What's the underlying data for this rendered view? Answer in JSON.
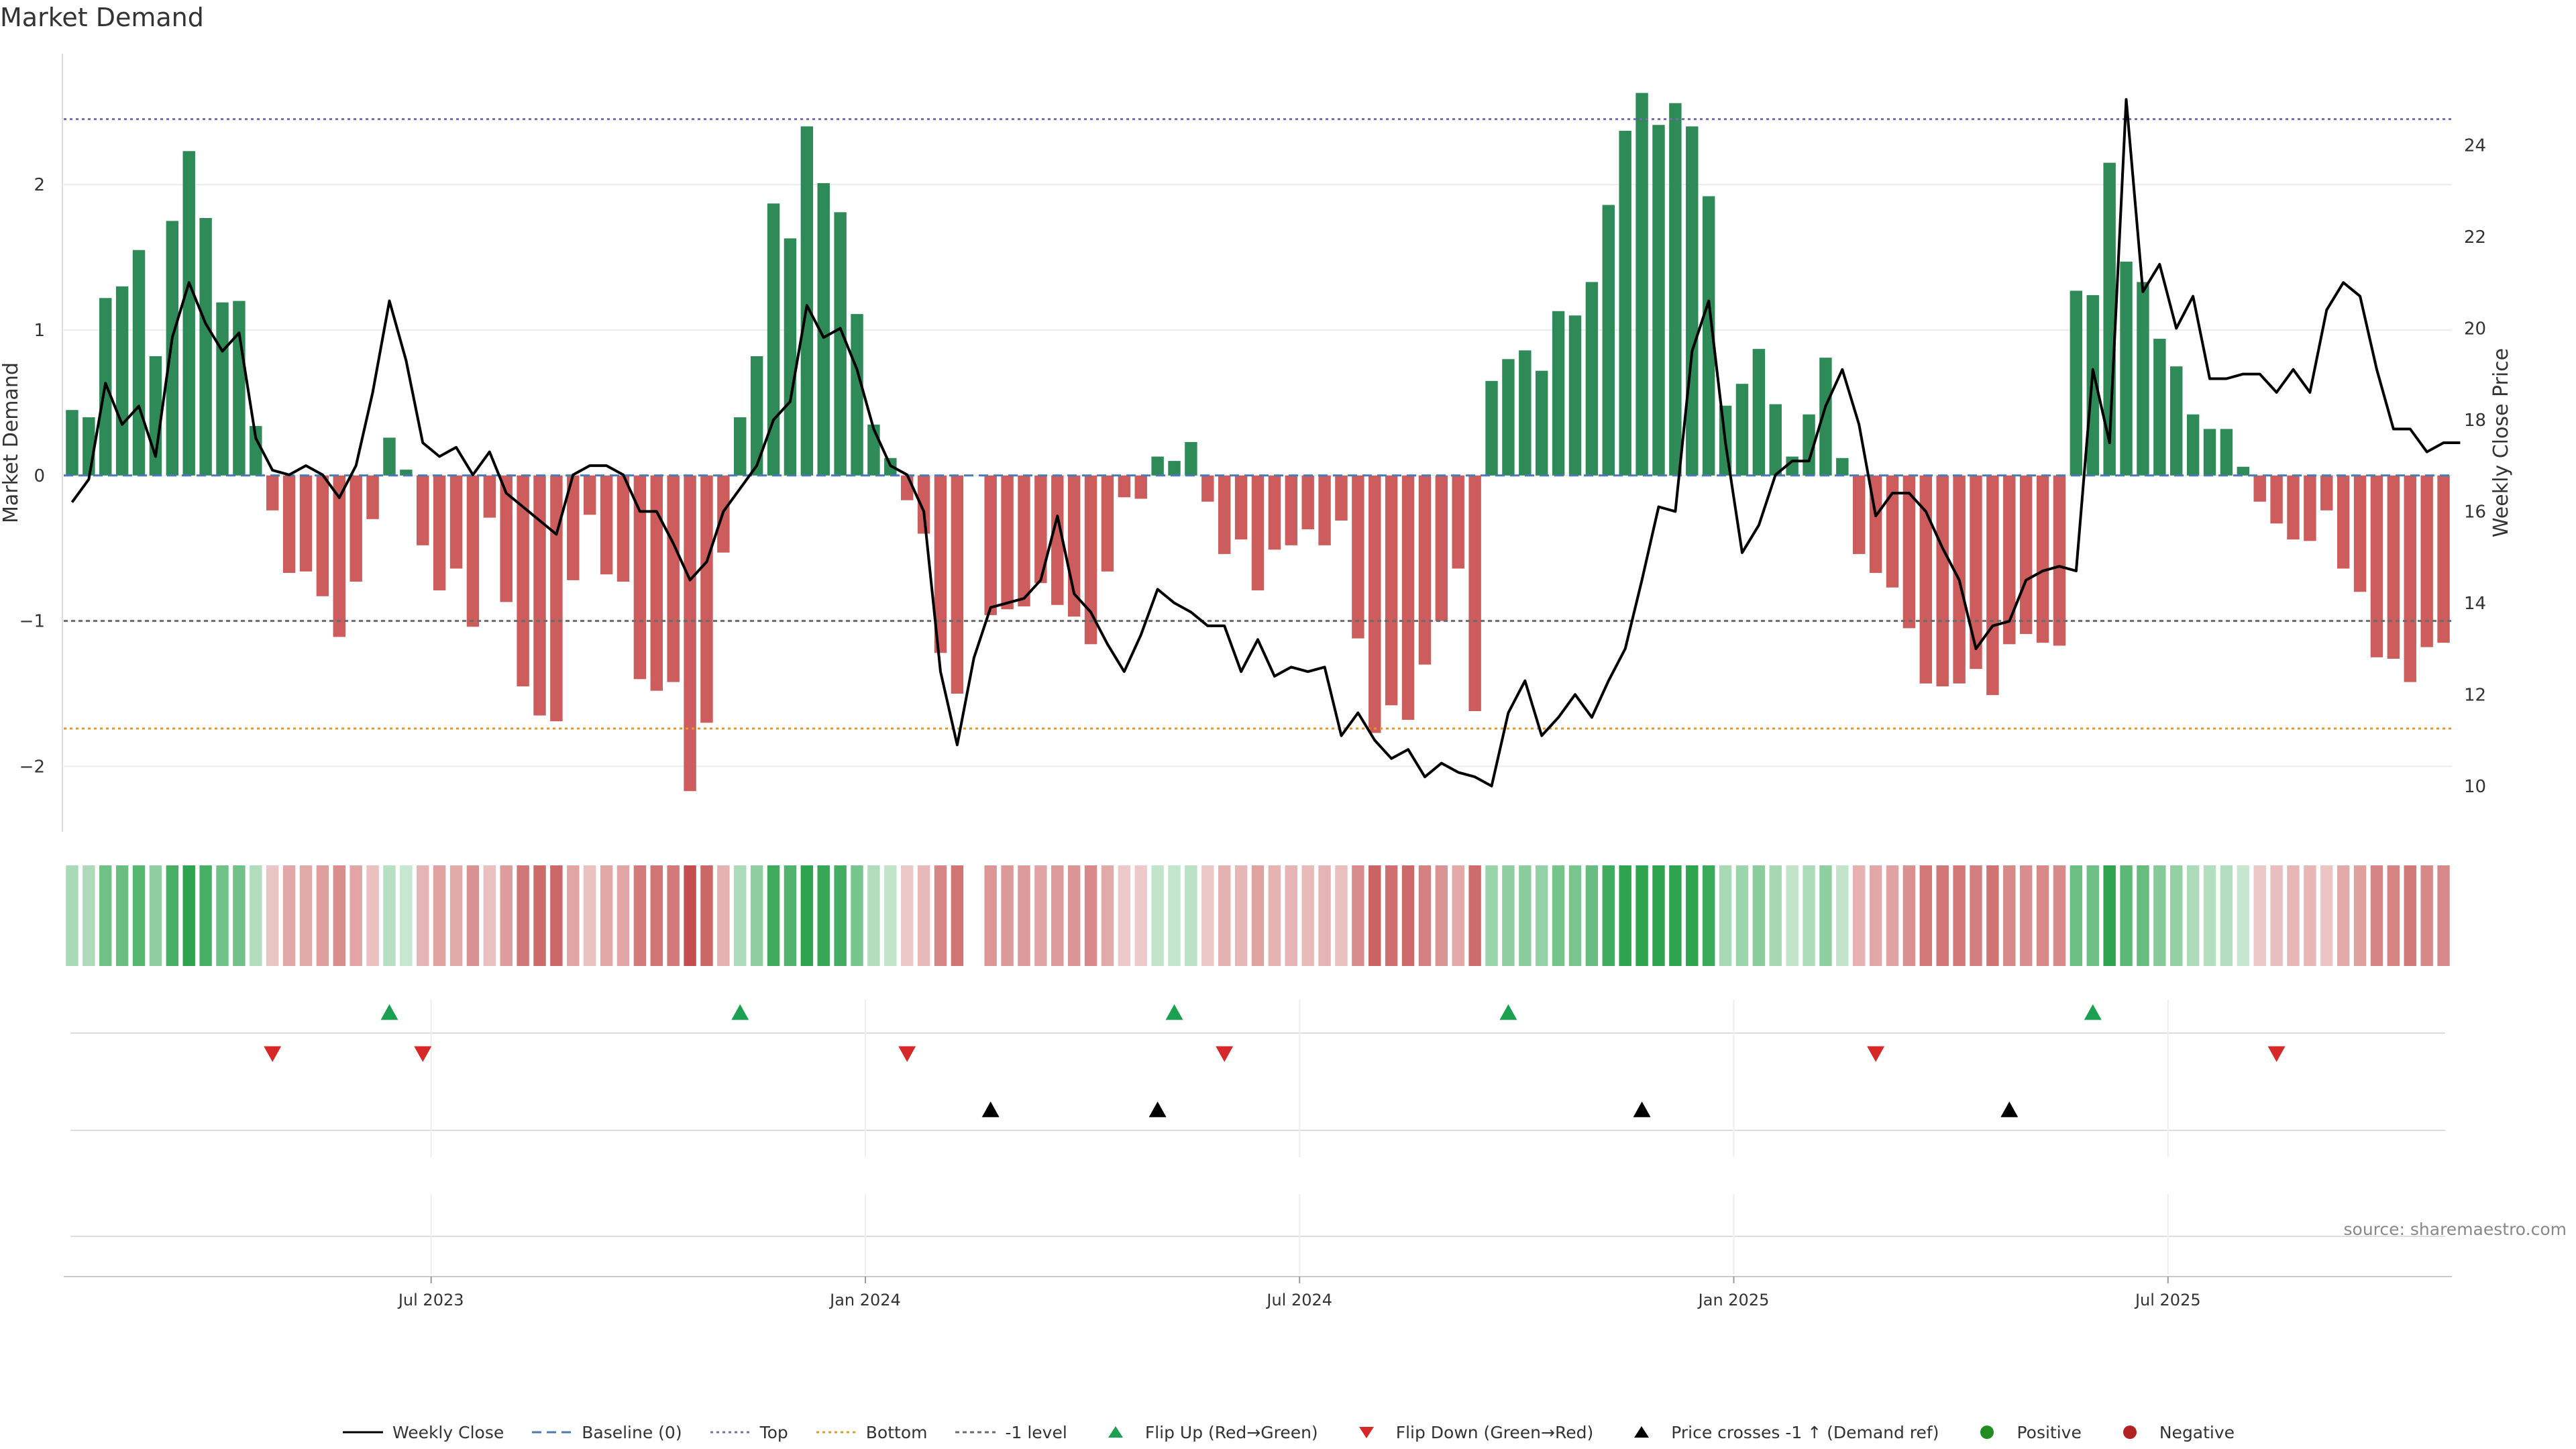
{
  "title": "Market Demand",
  "source": "source: sharemaestro.com",
  "colors": {
    "positive": "#2e8b57",
    "negative": "#cd5c5c",
    "line": "#000000",
    "baseline": "#4a7ab5",
    "top": "#7a6bb0",
    "bottom": "#e09a2a",
    "minus1": "#6b6b6b",
    "flip_up": "#1aa050",
    "flip_down": "#d62828",
    "cross": "#000000",
    "dot_pos": "#228b22",
    "dot_neg": "#b22222"
  },
  "chart_data": {
    "type": "bar",
    "title": "Market Demand",
    "xlabel": "",
    "ylabel": "Market Demand",
    "ylabel_right": "Weekly Close Price",
    "ylim": [
      -2.45,
      2.9
    ],
    "ylim_right": [
      9,
      26
    ],
    "yticks": [
      -2,
      -1,
      0,
      1,
      2
    ],
    "yticks_labels": [
      "−2",
      "−1",
      "0",
      "1",
      "2"
    ],
    "yticks_right": [
      10,
      12,
      14,
      16,
      18,
      20,
      22,
      24
    ],
    "start_date": "2023-01-02",
    "interval_days": 7,
    "xticks": [
      {
        "label": "Jul 2023",
        "week": 22
      },
      {
        "label": "Jan 2024",
        "week": 48
      },
      {
        "label": "Jul 2024",
        "week": 74
      },
      {
        "label": "Jan 2025",
        "week": 100
      },
      {
        "label": "Jul 2025",
        "week": 126
      }
    ],
    "reference_lines": {
      "top": 2.45,
      "bottom": -1.74,
      "minus_one": -1,
      "baseline": 0
    },
    "demand": [
      0.45,
      0.4,
      1.22,
      1.3,
      1.55,
      0.82,
      1.75,
      2.23,
      1.77,
      1.19,
      1.2,
      0.34,
      -0.24,
      -0.67,
      -0.66,
      -0.83,
      -1.11,
      -0.73,
      -0.3,
      0.26,
      0.04,
      -0.48,
      -0.79,
      -0.64,
      -1.04,
      -0.29,
      -0.87,
      -1.45,
      -1.65,
      -1.69,
      -0.72,
      -0.27,
      -0.68,
      -0.73,
      -1.4,
      -1.48,
      -1.42,
      -2.17,
      -1.7,
      -0.53,
      0.4,
      0.82,
      1.87,
      1.63,
      2.4,
      2.01,
      1.81,
      1.11,
      0.35,
      0.12,
      -0.17,
      -0.4,
      -1.22,
      -1.5,
      0,
      -0.96,
      -0.92,
      -0.9,
      -0.74,
      -0.89,
      -0.97,
      -1.16,
      -0.66,
      -0.15,
      -0.16,
      0.13,
      0.1,
      0.23,
      -0.18,
      -0.54,
      -0.44,
      -0.79,
      -0.51,
      -0.48,
      -0.37,
      -0.48,
      -0.31,
      -1.12,
      -1.77,
      -1.58,
      -1.68,
      -1.3,
      -1.0,
      -0.64,
      -1.62,
      0.65,
      0.8,
      0.86,
      0.72,
      1.13,
      1.1,
      1.33,
      1.86,
      2.37,
      2.63,
      2.41,
      2.56,
      2.4,
      1.92,
      0.48,
      0.63,
      0.87,
      0.49,
      0.13,
      0.42,
      0.81,
      0.12,
      -0.54,
      -0.67,
      -0.77,
      -1.05,
      -1.43,
      -1.45,
      -1.43,
      -1.33,
      -1.51,
      -1.16,
      -1.09,
      -1.15,
      -1.17,
      1.27,
      1.24,
      2.15,
      1.47,
      1.33,
      0.94,
      0.75,
      0.42,
      0.32,
      0.32,
      0.06,
      -0.18,
      -0.33,
      -0.44,
      -0.45,
      -0.24,
      -0.64,
      -0.8,
      -1.25,
      -1.26,
      -1.42,
      -1.18,
      -1.15
    ],
    "close": [
      16.2,
      16.7,
      18.8,
      17.9,
      18.3,
      17.2,
      19.8,
      21.0,
      20.1,
      19.5,
      19.9,
      17.6,
      16.9,
      16.8,
      17.0,
      16.8,
      16.3,
      17.0,
      18.6,
      20.6,
      19.3,
      17.5,
      17.2,
      17.4,
      16.8,
      17.3,
      16.4,
      16.1,
      15.8,
      15.5,
      16.8,
      17.0,
      17.0,
      16.8,
      16.0,
      16.0,
      15.3,
      14.5,
      14.9,
      16.0,
      16.5,
      17.0,
      18.0,
      18.4,
      20.5,
      19.8,
      20.0,
      19.1,
      17.8,
      17.0,
      16.8,
      16.0,
      12.5,
      10.9,
      12.8,
      13.9,
      14.0,
      14.1,
      14.5,
      15.9,
      14.2,
      13.8,
      13.1,
      12.5,
      13.3,
      14.3,
      14.0,
      13.8,
      13.5,
      13.5,
      12.5,
      13.2,
      12.4,
      12.6,
      12.5,
      12.6,
      11.1,
      11.6,
      11.0,
      10.6,
      10.8,
      10.2,
      10.5,
      10.3,
      10.2,
      10.0,
      11.6,
      12.3,
      11.1,
      11.5,
      12.0,
      11.5,
      12.3,
      13.0,
      14.5,
      16.1,
      16.0,
      19.5,
      20.6,
      17.5,
      15.1,
      15.7,
      16.8,
      17.1,
      17.1,
      18.3,
      19.1,
      17.9,
      15.9,
      16.4,
      16.4,
      16.0,
      15.2,
      14.5,
      13.0,
      13.5,
      13.6,
      14.5,
      14.7,
      14.8,
      14.7,
      19.1,
      17.5,
      25.0,
      20.8,
      21.4,
      20.0,
      20.7,
      18.9,
      18.9,
      19.0,
      19.0,
      18.6,
      19.1,
      18.6,
      20.4,
      21.0,
      20.7,
      19.1,
      17.8,
      17.8,
      17.3,
      17.5,
      17.5
    ],
    "flip_up": [
      19,
      40,
      66,
      86,
      121
    ],
    "flip_down": [
      12,
      21,
      50,
      69,
      108,
      132
    ],
    "price_crosses": [
      55,
      65,
      94,
      116
    ]
  },
  "legend": [
    {
      "key": "line",
      "label": "Weekly Close"
    },
    {
      "key": "baseline",
      "label": "Baseline (0)"
    },
    {
      "key": "top",
      "label": "Top"
    },
    {
      "key": "bottom",
      "label": "Bottom"
    },
    {
      "key": "minus1",
      "label": "-1 level"
    },
    {
      "key": "flip_up",
      "label": "Flip Up (Red→Green)"
    },
    {
      "key": "flip_down",
      "label": "Flip Down (Green→Red)"
    },
    {
      "key": "cross",
      "label": "Price crosses -1 ↑ (Demand ref)"
    },
    {
      "key": "dot_pos",
      "label": "Positive"
    },
    {
      "key": "dot_neg",
      "label": "Negative"
    }
  ]
}
